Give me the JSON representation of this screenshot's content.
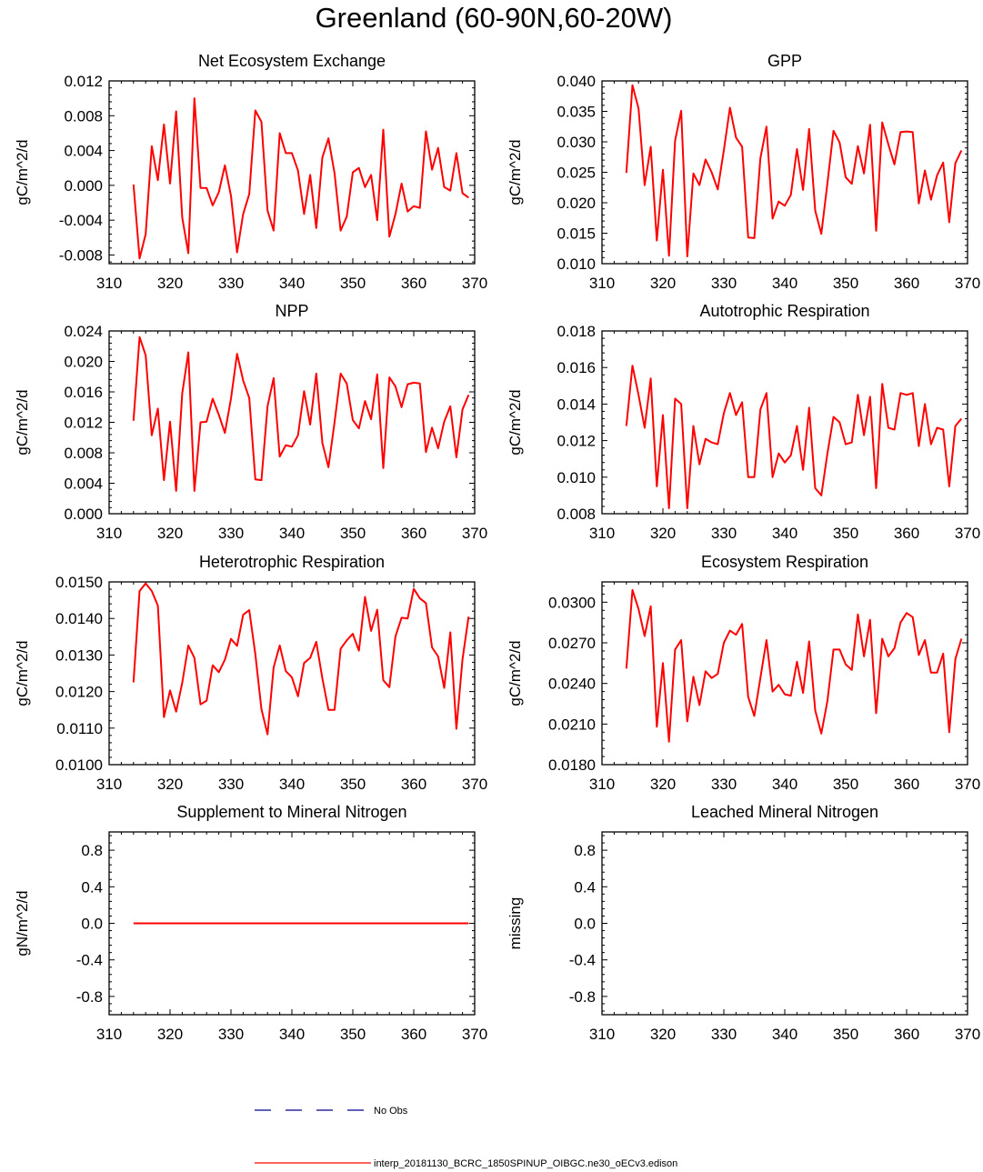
{
  "figure_title": "Greenland (60-90N,60-20W)",
  "legend": [
    {
      "label": "No Obs",
      "color": "#00008b",
      "style": "dashed"
    },
    {
      "label": "interp_20181130_BCRC_1850SPINUP_OIBGC.ne30_oECv3.edison",
      "color": "#ff0000",
      "style": "solid"
    }
  ],
  "chart_data": [
    {
      "type": "line",
      "title": "Net Ecosystem Exchange",
      "xlabel": "",
      "ylabel": "gC/m^2/d",
      "xlim": [
        310,
        370
      ],
      "ylim": [
        -0.009,
        0.012
      ],
      "xticks": [
        "310",
        "320",
        "330",
        "340",
        "350",
        "360",
        "370"
      ],
      "yticks": [
        -0.008,
        -0.004,
        0.0,
        0.004,
        0.008,
        0.012
      ],
      "ytick_labels": [
        "-0.008",
        "-0.004",
        "0.000",
        "0.004",
        "0.008",
        "0.012"
      ],
      "x_start": 314,
      "series": [
        {
          "name": "interp_20181130_BCRC_1850SPINUP_OIBGC.ne30_oECv3.edison",
          "values": [
            0.0001,
            -0.0084,
            -0.0056,
            0.0045,
            0.0006,
            0.007,
            0.0002,
            0.0085,
            -0.0037,
            -0.0078,
            0.01,
            -0.0003,
            -0.0003,
            -0.0023,
            -0.0008,
            0.0023,
            -0.0012,
            -0.0077,
            -0.0033,
            -0.001,
            0.0086,
            0.0073,
            -0.0029,
            -0.0052,
            0.006,
            0.0037,
            0.0037,
            0.0017,
            -0.0033,
            0.0012,
            -0.0049,
            0.0032,
            0.0054,
            0.0014,
            -0.0052,
            -0.0036,
            0.0015,
            0.002,
            -0.0002,
            0.0012,
            -0.004,
            0.0064,
            -0.0059,
            -0.0033,
            0.0002,
            -0.003,
            -0.0024,
            -0.0026,
            0.0062,
            0.0018,
            0.0043,
            -0.0002,
            -0.0006,
            0.0037,
            -0.0009,
            -0.0014
          ]
        }
      ]
    },
    {
      "type": "line",
      "title": "GPP",
      "xlabel": "",
      "ylabel": "gC/m^2/d",
      "xlim": [
        310,
        370
      ],
      "ylim": [
        0.01,
        0.04
      ],
      "xticks": [
        "310",
        "320",
        "330",
        "340",
        "350",
        "360",
        "370"
      ],
      "yticks": [
        0.01,
        0.015,
        0.02,
        0.025,
        0.03,
        0.035,
        0.04
      ],
      "ytick_labels": [
        "0.010",
        "0.015",
        "0.020",
        "0.025",
        "0.030",
        "0.035",
        "0.040"
      ],
      "x_start": 314,
      "series": [
        {
          "name": "interp_20181130_BCRC_1850SPINUP_OIBGC.ne30_oECv3.edison",
          "values": [
            0.0249,
            0.0393,
            0.0355,
            0.0229,
            0.0292,
            0.0138,
            0.0254,
            0.0113,
            0.0302,
            0.0351,
            0.0112,
            0.0248,
            0.0229,
            0.0271,
            0.025,
            0.0222,
            0.0286,
            0.0356,
            0.0307,
            0.0292,
            0.0143,
            0.0142,
            0.0273,
            0.0325,
            0.0174,
            0.0202,
            0.0195,
            0.0213,
            0.0288,
            0.0221,
            0.0321,
            0.0187,
            0.0149,
            0.0232,
            0.0318,
            0.0299,
            0.0242,
            0.0231,
            0.0293,
            0.0248,
            0.0328,
            0.0154,
            0.0332,
            0.0296,
            0.0263,
            0.0316,
            0.0317,
            0.0316,
            0.0199,
            0.0253,
            0.0205,
            0.0245,
            0.0266,
            0.0168,
            0.0265,
            0.0286
          ]
        }
      ]
    },
    {
      "type": "line",
      "title": "NPP",
      "xlabel": "",
      "ylabel": "gC/m^2/d",
      "xlim": [
        310,
        370
      ],
      "ylim": [
        0.0,
        0.024
      ],
      "xticks": [
        "310",
        "320",
        "330",
        "340",
        "350",
        "360",
        "370"
      ],
      "yticks": [
        0.0,
        0.004,
        0.008,
        0.012,
        0.016,
        0.02,
        0.024
      ],
      "ytick_labels": [
        "0.000",
        "0.004",
        "0.008",
        "0.012",
        "0.016",
        "0.020",
        "0.024"
      ],
      "x_start": 314,
      "series": [
        {
          "name": "interp_20181130_BCRC_1850SPINUP_OIBGC.ne30_oECv3.edison",
          "values": [
            0.0122,
            0.0232,
            0.0208,
            0.0103,
            0.0138,
            0.0044,
            0.0121,
            0.003,
            0.0158,
            0.0212,
            0.003,
            0.012,
            0.0121,
            0.0151,
            0.013,
            0.0106,
            0.0151,
            0.021,
            0.0175,
            0.0152,
            0.0045,
            0.0044,
            0.0141,
            0.0178,
            0.0075,
            0.009,
            0.0088,
            0.0103,
            0.0161,
            0.0117,
            0.0184,
            0.0093,
            0.0061,
            0.012,
            0.0184,
            0.0171,
            0.0123,
            0.0112,
            0.0148,
            0.0124,
            0.0183,
            0.006,
            0.0179,
            0.0167,
            0.014,
            0.017,
            0.0172,
            0.0171,
            0.0081,
            0.0113,
            0.0086,
            0.0121,
            0.0141,
            0.0074,
            0.0137,
            0.0156
          ]
        }
      ]
    },
    {
      "type": "line",
      "title": "Autotrophic Respiration",
      "xlabel": "",
      "ylabel": "gC/m^2/d",
      "xlim": [
        310,
        370
      ],
      "ylim": [
        0.008,
        0.018
      ],
      "xticks": [
        "310",
        "320",
        "330",
        "340",
        "350",
        "360",
        "370"
      ],
      "yticks": [
        0.008,
        0.01,
        0.012,
        0.014,
        0.016,
        0.018
      ],
      "ytick_labels": [
        "0.008",
        "0.010",
        "0.012",
        "0.014",
        "0.016",
        "0.018"
      ],
      "x_start": 314,
      "series": [
        {
          "name": "interp_20181130_BCRC_1850SPINUP_OIBGC.ne30_oECv3.edison",
          "values": [
            0.0128,
            0.0161,
            0.0145,
            0.0127,
            0.0154,
            0.0095,
            0.0134,
            0.0083,
            0.0143,
            0.014,
            0.0083,
            0.0128,
            0.0107,
            0.0121,
            0.0119,
            0.0118,
            0.0135,
            0.0146,
            0.0134,
            0.0141,
            0.01,
            0.01,
            0.0137,
            0.0146,
            0.01,
            0.0113,
            0.0108,
            0.0112,
            0.0128,
            0.0104,
            0.0138,
            0.0094,
            0.009,
            0.0113,
            0.0133,
            0.013,
            0.0118,
            0.0119,
            0.0145,
            0.0123,
            0.0144,
            0.0094,
            0.0151,
            0.0127,
            0.0126,
            0.0146,
            0.0145,
            0.0146,
            0.0117,
            0.014,
            0.0118,
            0.0127,
            0.0126,
            0.0095,
            0.0128,
            0.0132
          ]
        }
      ]
    },
    {
      "type": "line",
      "title": "Heterotrophic Respiration",
      "xlabel": "",
      "ylabel": "gC/m^2/d",
      "xlim": [
        310,
        370
      ],
      "ylim": [
        0.01,
        0.015
      ],
      "xticks": [
        "310",
        "320",
        "330",
        "340",
        "350",
        "360",
        "370"
      ],
      "yticks": [
        0.01,
        0.011,
        0.012,
        0.013,
        0.014,
        0.015
      ],
      "ytick_labels": [
        "0.0100",
        "0.0110",
        "0.0120",
        "0.0130",
        "0.0140",
        "0.0150"
      ],
      "x_start": 314,
      "series": [
        {
          "name": "interp_20181130_BCRC_1850SPINUP_OIBGC.ne30_oECv3.edison",
          "values": [
            0.01225,
            0.01475,
            0.01496,
            0.01475,
            0.01435,
            0.0113,
            0.01203,
            0.01145,
            0.01224,
            0.01326,
            0.01292,
            0.01165,
            0.01175,
            0.01272,
            0.01253,
            0.01287,
            0.01344,
            0.01325,
            0.0141,
            0.01423,
            0.01302,
            0.01152,
            0.01083,
            0.01266,
            0.01326,
            0.01256,
            0.01239,
            0.01187,
            0.01278,
            0.01292,
            0.01336,
            0.01236,
            0.0115,
            0.0115,
            0.01317,
            0.0134,
            0.01358,
            0.01312,
            0.01459,
            0.01366,
            0.01424,
            0.01231,
            0.01212,
            0.01351,
            0.01402,
            0.014,
            0.01481,
            0.01455,
            0.01442,
            0.01321,
            0.01296,
            0.0121,
            0.01362,
            0.01098,
            0.01288,
            0.01405
          ]
        }
      ]
    },
    {
      "type": "line",
      "title": "Ecosystem Respiration",
      "xlabel": "",
      "ylabel": "gC/m^2/d",
      "xlim": [
        310,
        370
      ],
      "ylim": [
        0.018,
        0.0315
      ],
      "xticks": [
        "310",
        "320",
        "330",
        "340",
        "350",
        "360",
        "370"
      ],
      "yticks": [
        0.018,
        0.021,
        0.024,
        0.027,
        0.03
      ],
      "ytick_labels": [
        "0.0180",
        "0.0210",
        "0.0240",
        "0.0270",
        "0.0300"
      ],
      "x_start": 314,
      "series": [
        {
          "name": "interp_20181130_BCRC_1850SPINUP_OIBGC.ne30_oECv3.edison",
          "values": [
            0.0251,
            0.0309,
            0.0295,
            0.0275,
            0.0297,
            0.0208,
            0.0255,
            0.0197,
            0.0265,
            0.0272,
            0.0212,
            0.0245,
            0.0224,
            0.0249,
            0.0244,
            0.0247,
            0.027,
            0.0279,
            0.0276,
            0.0284,
            0.023,
            0.0216,
            0.0244,
            0.0272,
            0.0234,
            0.0239,
            0.0232,
            0.0231,
            0.0256,
            0.0233,
            0.0271,
            0.022,
            0.0203,
            0.0227,
            0.0265,
            0.0265,
            0.0254,
            0.025,
            0.0291,
            0.026,
            0.0287,
            0.0218,
            0.0273,
            0.026,
            0.0266,
            0.0285,
            0.0292,
            0.0289,
            0.0261,
            0.0272,
            0.0248,
            0.0248,
            0.0262,
            0.0204,
            0.0258,
            0.0273
          ]
        }
      ]
    },
    {
      "type": "line",
      "title": "Supplement to Mineral Nitrogen",
      "xlabel": "",
      "ylabel": "gN/m^2/d",
      "xlim": [
        310,
        370
      ],
      "ylim": [
        -1.0,
        1.0
      ],
      "xticks": [
        "310",
        "320",
        "330",
        "340",
        "350",
        "360",
        "370"
      ],
      "yticks": [
        -0.8,
        -0.4,
        0.0,
        0.4,
        0.8
      ],
      "ytick_labels": [
        "-0.8",
        "-0.4",
        "0.0",
        "0.4",
        "0.8"
      ],
      "x_start": 314,
      "series": [
        {
          "name": "interp_20181130_BCRC_1850SPINUP_OIBGC.ne30_oECv3.edison",
          "values": [
            0,
            0,
            0,
            0,
            0,
            0,
            0,
            0,
            0,
            0,
            0,
            0,
            0,
            0,
            0,
            0,
            0,
            0,
            0,
            0,
            0,
            0,
            0,
            0,
            0,
            0,
            0,
            0,
            0,
            0,
            0,
            0,
            0,
            0,
            0,
            0,
            0,
            0,
            0,
            0,
            0,
            0,
            0,
            0,
            0,
            0,
            0,
            0,
            0,
            0,
            0,
            0,
            0,
            0,
            0,
            0
          ]
        }
      ]
    },
    {
      "type": "line",
      "title": "Leached Mineral Nitrogen",
      "xlabel": "",
      "ylabel": "missing",
      "xlim": [
        310,
        370
      ],
      "ylim": [
        -1.0,
        1.0
      ],
      "xticks": [
        "310",
        "320",
        "330",
        "340",
        "350",
        "360",
        "370"
      ],
      "yticks": [
        -0.8,
        -0.4,
        0.0,
        0.4,
        0.8
      ],
      "ytick_labels": [
        "-0.8",
        "-0.4",
        "0.0",
        "0.4",
        "0.8"
      ],
      "x_start": 314,
      "series": []
    }
  ]
}
